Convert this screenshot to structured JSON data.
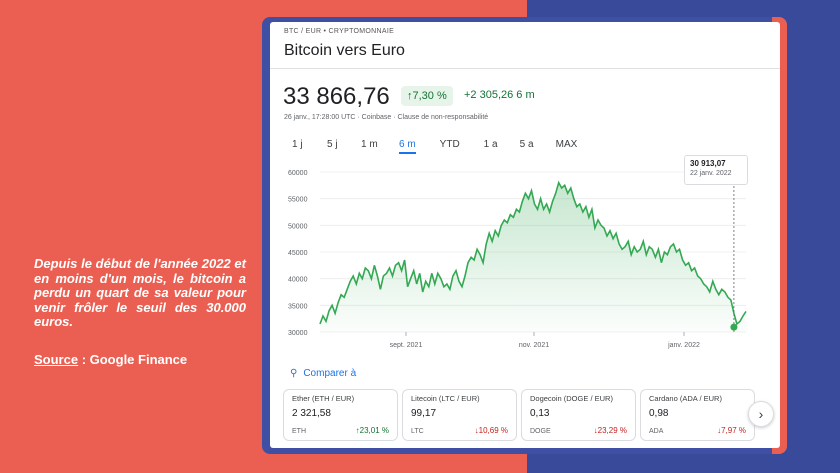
{
  "caption": "Depuis le début de l'année 2022 et en moins d'un mois, le bitcoin a perdu un quart de sa valeur pour venir frôler le seuil des 30.000 euros.",
  "source": {
    "label": "Source",
    "text": " : Google Finance"
  },
  "card": {
    "breadcrumb": "BTC / EUR • CRYPTOMONNAIE",
    "title": "Bitcoin vers Euro",
    "price": "33 866,76",
    "change_pct": "↑7,30 %",
    "change_abs": "+2 305,26 6 m",
    "meta": "26 janv., 17:28:00 UTC · Coinbase · Clause de non-responsabilité",
    "ranges": [
      "1 j",
      "5 j",
      "1 m",
      "6 m",
      "YTD",
      "1 a",
      "5 a",
      "MAX"
    ],
    "active_range": "6 m",
    "tooltip": {
      "value": "30 913,07",
      "date": "22 janv. 2022"
    },
    "compare_label": "Comparer à",
    "tiles": [
      {
        "name": "Ether (ETH / EUR)",
        "price": "2 321,58",
        "symbol": "ETH",
        "change": "↑23,01 %",
        "dir": "up"
      },
      {
        "name": "Litecoin (LTC / EUR)",
        "price": "99,17",
        "symbol": "LTC",
        "change": "↓10,69 %",
        "dir": "down"
      },
      {
        "name": "Dogecoin (DOGE / EUR)",
        "price": "0,13",
        "symbol": "DOGE",
        "change": "↓23,29 %",
        "dir": "down"
      },
      {
        "name": "Cardano (ADA / EUR)",
        "price": "0,98",
        "symbol": "ADA",
        "change": "↓7,97 %",
        "dir": "down"
      }
    ]
  },
  "chart_data": {
    "type": "area",
    "title": "",
    "y_ticks": [
      "60000",
      "55000",
      "50000",
      "45000",
      "40000",
      "35000",
      "30000"
    ],
    "x_ticks": [
      "sept. 2021",
      "nov. 2021",
      "janv. 2022"
    ],
    "ylim": [
      30000,
      60000
    ],
    "color": "#34a853",
    "series": [
      {
        "values": [
          31500,
          33000,
          32000,
          34000,
          35000,
          33500,
          35500,
          37000,
          36500,
          38000,
          39500,
          40500,
          39000,
          41000,
          40000,
          42000,
          41500,
          40000,
          42500,
          40500,
          38000,
          40500,
          41000,
          42000,
          40500,
          42500,
          43000,
          41500,
          43500,
          38500,
          40000,
          41500,
          39000,
          41000,
          37500,
          39500,
          38500,
          41000,
          39000,
          41000,
          40000,
          38500,
          39000,
          38000,
          40500,
          41500,
          39500,
          38500,
          40500,
          43000,
          44000,
          43500,
          45500,
          44500,
          43000,
          46500,
          48500,
          47000,
          49000,
          48000,
          50000,
          51000,
          50500,
          52000,
          51500,
          53000,
          52500,
          54500,
          56000,
          55000,
          56500,
          54000,
          53000,
          55000,
          53000,
          54000,
          52500,
          54500,
          56000,
          58000,
          57000,
          57500,
          56000,
          57000,
          55000,
          53500,
          54000,
          52500,
          53500,
          51500,
          53000,
          49500,
          51000,
          50000,
          49500,
          48000,
          49000,
          47500,
          48500,
          46500,
          45500,
          46000,
          47000,
          44500,
          46000,
          45000,
          45500,
          47000,
          44500,
          46000,
          45500,
          44000,
          45500,
          43000,
          45000,
          44500,
          46000,
          46500,
          45000,
          45500,
          43500,
          42500,
          43000,
          41500,
          42000,
          40500,
          40000,
          39000,
          38500,
          37500,
          39500,
          38000,
          37000,
          38000,
          37500,
          36500,
          36000,
          33500,
          31500,
          32000,
          33000,
          33866
        ]
      }
    ]
  }
}
